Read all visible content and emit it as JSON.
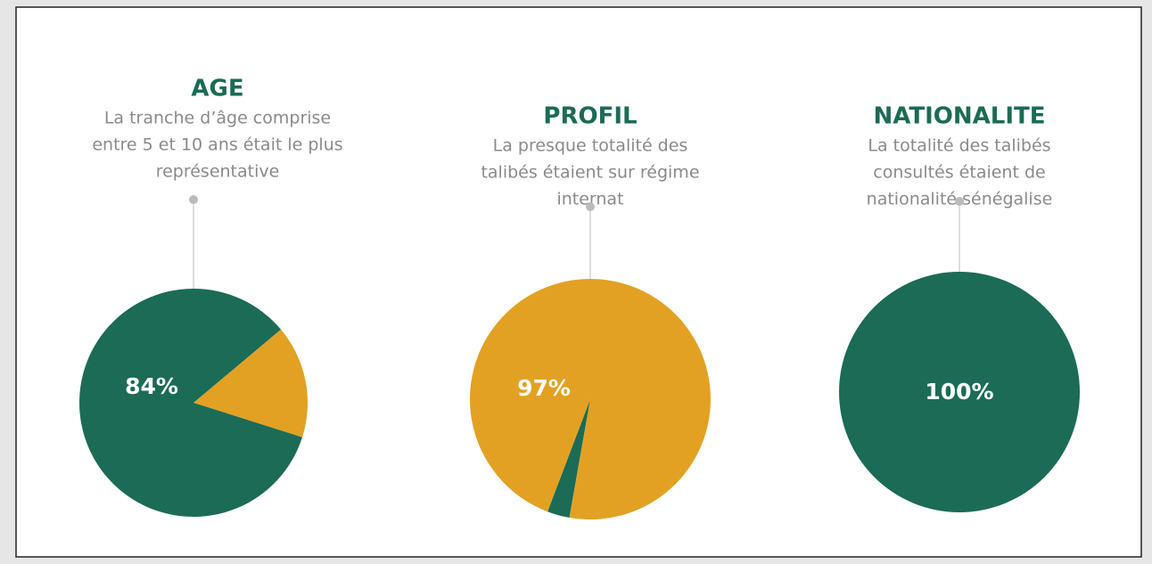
{
  "chart_data": [
    {
      "type": "pie",
      "title": "AGE",
      "subtitle": [
        "La tranche d’âge comprise",
        "entre 5 et 10 ans était le plus",
        "représentative"
      ],
      "values": [
        84,
        16
      ],
      "value_labels": [
        "84%",
        null
      ],
      "colors": [
        "#1b6b56",
        "#e2a123"
      ]
    },
    {
      "type": "pie",
      "title": "PROFIL",
      "subtitle": [
        "La presque totalité des",
        "talibés étaient sur régime",
        "internat"
      ],
      "values": [
        97,
        3
      ],
      "value_labels": [
        "97%",
        null
      ],
      "colors": [
        "#e2a123",
        "#1b6b56"
      ]
    },
    {
      "type": "pie",
      "title": "NATIONALITE",
      "subtitle": [
        "La totalité des talibés",
        "consultés étaient de",
        "nationalité sénégalise"
      ],
      "values": [
        100
      ],
      "value_labels": [
        "100%"
      ],
      "colors": [
        "#1b6b56"
      ]
    }
  ]
}
